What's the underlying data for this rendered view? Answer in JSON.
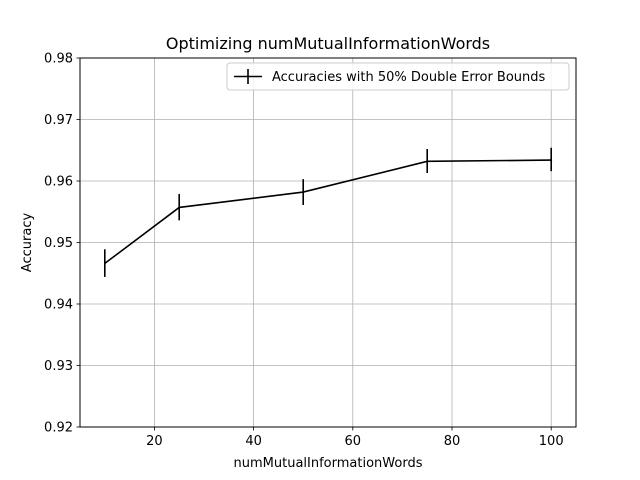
{
  "chart_data": {
    "type": "line",
    "title": "Optimizing numMutualInformationWords",
    "xlabel": "numMutualInformationWords",
    "ylabel": "Accuracy",
    "xlim": [
      5,
      105
    ],
    "ylim": [
      0.92,
      0.98
    ],
    "x_ticks": [
      20,
      40,
      60,
      80,
      100
    ],
    "y_ticks": [
      0.92,
      0.93,
      0.94,
      0.95,
      0.96,
      0.97,
      0.98
    ],
    "grid": true,
    "legend_position": "top-right",
    "series": [
      {
        "name": "Accuracies with 50% Double Error Bounds",
        "color": "#000000",
        "x": [
          10,
          25,
          50,
          75,
          100
        ],
        "y": [
          0.9466,
          0.9557,
          0.9582,
          0.9632,
          0.9634
        ],
        "err_low": [
          0.9444,
          0.9536,
          0.9561,
          0.9613,
          0.9616
        ],
        "err_high": [
          0.9489,
          0.9579,
          0.9603,
          0.9652,
          0.9654
        ]
      }
    ]
  }
}
